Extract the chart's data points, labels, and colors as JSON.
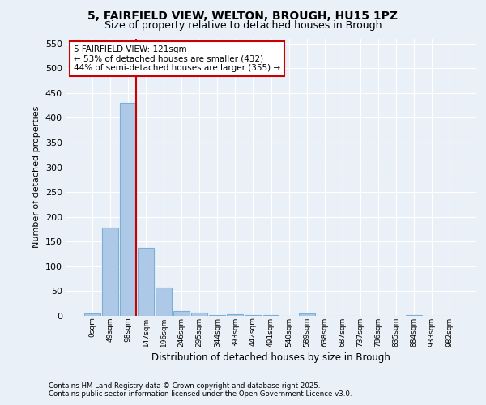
{
  "title1": "5, FAIRFIELD VIEW, WELTON, BROUGH, HU15 1PZ",
  "title2": "Size of property relative to detached houses in Brough",
  "xlabel": "Distribution of detached houses by size in Brough",
  "ylabel": "Number of detached properties",
  "bar_values": [
    5,
    178,
    430,
    138,
    58,
    9,
    7,
    2,
    3,
    1,
    1,
    0,
    5,
    0,
    0,
    0,
    0,
    0,
    2,
    0,
    0
  ],
  "bar_labels": [
    "0sqm",
    "49sqm",
    "98sqm",
    "147sqm",
    "196sqm",
    "246sqm",
    "295sqm",
    "344sqm",
    "393sqm",
    "442sqm",
    "491sqm",
    "540sqm",
    "589sqm",
    "638sqm",
    "687sqm",
    "737sqm",
    "786sqm",
    "835sqm",
    "884sqm",
    "933sqm",
    "982sqm"
  ],
  "bar_color": "#aec9e8",
  "bar_edge_color": "#7bafd4",
  "vline_color": "#cc0000",
  "annotation_text": "5 FAIRFIELD VIEW: 121sqm\n← 53% of detached houses are smaller (432)\n44% of semi-detached houses are larger (355) →",
  "annotation_box_color": "#ffffff",
  "annotation_box_edge": "#cc0000",
  "ylim": [
    0,
    560
  ],
  "yticks": [
    0,
    50,
    100,
    150,
    200,
    250,
    300,
    350,
    400,
    450,
    500,
    550
  ],
  "bg_color": "#eaf0f8",
  "plot_bg_color": "#eaf0f8",
  "grid_color": "#ffffff",
  "footer_line1": "Contains HM Land Registry data © Crown copyright and database right 2025.",
  "footer_line2": "Contains public sector information licensed under the Open Government Licence v3.0."
}
